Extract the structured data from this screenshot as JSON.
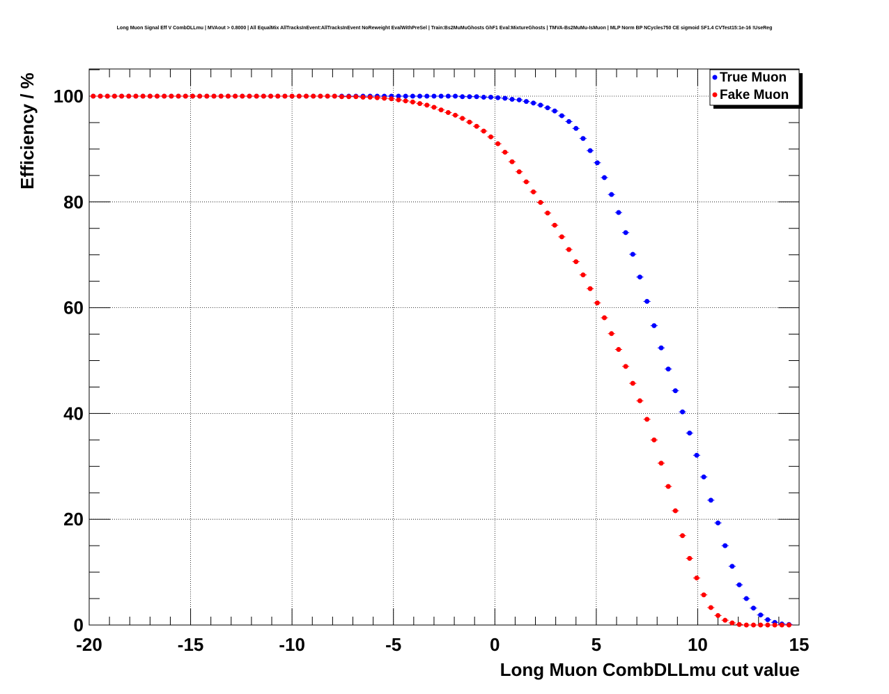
{
  "chart_data": {
    "type": "scatter",
    "title": "Long Muon Signal Eff V CombDLLmu | MVAout > 0.8000 | All EqualMix AllTracksInEvent:AllTracksInEvent NoReweight EvalWithPreSel | Train:Bs2MuMuGhosts GhF1 Eval:MixtureGhosts | TMVA-Bs2MuMu-IsMuon | MLP Norm BP NCycles750 CE sigmoid SF1.4 CVTest15:1e-16 !UseReg",
    "xlabel": "Long Muon CombDLLmu cut value",
    "ylabel": "Efficiency / %",
    "xlim": [
      -20,
      15
    ],
    "ylim": [
      0,
      105
    ],
    "xticks": [
      -20,
      -15,
      -10,
      -5,
      0,
      5,
      10,
      15
    ],
    "xtick_labels": [
      "-20",
      "-15",
      "-10",
      "-5",
      "0",
      "5",
      "10",
      "15"
    ],
    "yticks": [
      0,
      20,
      40,
      60,
      80,
      100
    ],
    "ytick_labels": [
      "0",
      "20",
      "40",
      "60",
      "80",
      "100"
    ],
    "grid": true,
    "legend_position": "top-right",
    "series": [
      {
        "name": "True Muon",
        "color": "#0000ff",
        "x": [
          -19.8,
          -19.45,
          -19.1,
          -18.75,
          -18.4,
          -18.05,
          -17.7,
          -17.35,
          -17.0,
          -16.65,
          -16.3,
          -15.95,
          -15.6,
          -15.25,
          -14.9,
          -14.55,
          -14.2,
          -13.85,
          -13.5,
          -13.15,
          -12.8,
          -12.45,
          -12.1,
          -11.75,
          -11.4,
          -11.05,
          -10.7,
          -10.35,
          -10.0,
          -9.65,
          -9.3,
          -8.95,
          -8.6,
          -8.25,
          -7.9,
          -7.55,
          -7.2,
          -6.85,
          -6.5,
          -6.15,
          -5.8,
          -5.45,
          -5.1,
          -4.75,
          -4.4,
          -4.05,
          -3.7,
          -3.35,
          -3.0,
          -2.65,
          -2.3,
          -1.95,
          -1.6,
          -1.25,
          -0.9,
          -0.55,
          -0.2,
          0.15,
          0.5,
          0.85,
          1.2,
          1.55,
          1.9,
          2.25,
          2.6,
          2.95,
          3.3,
          3.65,
          4.0,
          4.35,
          4.7,
          5.05,
          5.4,
          5.75,
          6.1,
          6.45,
          6.8,
          7.15,
          7.5,
          7.85,
          8.2,
          8.55,
          8.9,
          9.25,
          9.6,
          9.95,
          10.3,
          10.65,
          11.0,
          11.35,
          11.7,
          12.05,
          12.4,
          12.75,
          13.1,
          13.45,
          13.8,
          14.15,
          14.5
        ],
        "y": [
          100,
          100,
          100,
          100,
          100,
          100,
          100,
          100,
          100,
          100,
          100,
          100,
          100,
          100,
          100,
          100,
          100,
          100,
          100,
          100,
          100,
          100,
          100,
          100,
          100,
          100,
          100,
          100,
          100,
          100,
          100,
          100,
          100,
          100,
          100,
          100,
          100,
          100,
          100,
          100,
          100,
          100,
          100,
          100,
          100,
          100,
          100,
          100,
          100,
          100,
          100,
          100,
          99.9,
          99.9,
          99.9,
          99.8,
          99.8,
          99.7,
          99.6,
          99.4,
          99.3,
          99.0,
          98.7,
          98.3,
          97.8,
          97.2,
          96.3,
          95.2,
          93.9,
          92.0,
          89.7,
          87.4,
          84.6,
          81.4,
          78.0,
          74.2,
          70.1,
          65.8,
          61.2,
          56.6,
          52.4,
          48.4,
          44.3,
          40.3,
          36.3,
          32.1,
          28.0,
          23.6,
          19.3,
          15.0,
          11.1,
          7.6,
          5.0,
          3.2,
          1.9,
          1.0,
          0.5,
          0.2,
          0.1
        ]
      },
      {
        "name": "Fake Muon",
        "color": "#ff0000",
        "x": [
          -19.8,
          -19.45,
          -19.1,
          -18.75,
          -18.4,
          -18.05,
          -17.7,
          -17.35,
          -17.0,
          -16.65,
          -16.3,
          -15.95,
          -15.6,
          -15.25,
          -14.9,
          -14.55,
          -14.2,
          -13.85,
          -13.5,
          -13.15,
          -12.8,
          -12.45,
          -12.1,
          -11.75,
          -11.4,
          -11.05,
          -10.7,
          -10.35,
          -10.0,
          -9.65,
          -9.3,
          -8.95,
          -8.6,
          -8.25,
          -7.9,
          -7.55,
          -7.2,
          -6.85,
          -6.5,
          -6.15,
          -5.8,
          -5.45,
          -5.1,
          -4.75,
          -4.4,
          -4.05,
          -3.7,
          -3.35,
          -3.0,
          -2.65,
          -2.3,
          -1.95,
          -1.6,
          -1.25,
          -0.9,
          -0.55,
          -0.2,
          0.15,
          0.5,
          0.85,
          1.2,
          1.55,
          1.9,
          2.25,
          2.6,
          2.95,
          3.3,
          3.65,
          4.0,
          4.35,
          4.7,
          5.05,
          5.4,
          5.75,
          6.1,
          6.45,
          6.8,
          7.15,
          7.5,
          7.85,
          8.2,
          8.55,
          8.9,
          9.25,
          9.6,
          9.95,
          10.3,
          10.65,
          11.0,
          11.35,
          11.7,
          12.05,
          12.4,
          12.75,
          13.1,
          13.45,
          13.8,
          14.15,
          14.5
        ],
        "y": [
          100,
          100,
          100,
          100,
          100,
          100,
          100,
          100,
          100,
          100,
          100,
          100,
          100,
          100,
          100,
          100,
          100,
          100,
          100,
          100,
          100,
          100,
          100,
          100,
          100,
          100,
          100,
          100,
          100,
          100,
          100,
          100,
          100,
          100,
          100,
          99.9,
          99.9,
          99.9,
          99.8,
          99.8,
          99.7,
          99.6,
          99.5,
          99.3,
          99.1,
          98.9,
          98.6,
          98.3,
          97.9,
          97.4,
          96.9,
          96.4,
          95.8,
          95.1,
          94.3,
          93.4,
          92.3,
          91.0,
          89.4,
          87.6,
          85.7,
          83.8,
          81.9,
          79.9,
          77.9,
          75.6,
          73.4,
          71.0,
          68.7,
          66.2,
          63.6,
          60.9,
          58.1,
          55.1,
          52.1,
          48.9,
          45.7,
          42.4,
          38.9,
          35.0,
          30.6,
          26.2,
          21.6,
          16.9,
          12.6,
          8.9,
          5.7,
          3.3,
          1.8,
          0.9,
          0.4,
          0.1,
          0.0,
          0.0,
          0.0,
          0.0,
          0.0,
          0.0,
          0.0
        ]
      }
    ]
  }
}
